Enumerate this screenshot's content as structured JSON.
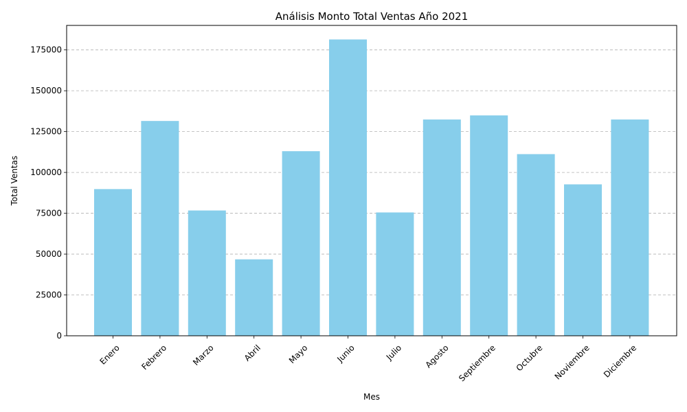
{
  "chart_data": {
    "type": "bar",
    "title": "Análisis Monto Total Ventas Año 2021",
    "xlabel": "Mes",
    "ylabel": "Total Ventas",
    "categories": [
      "Enero",
      "Febrero",
      "Marzo",
      "Abril",
      "Mayo",
      "Junio",
      "Julio",
      "Agosto",
      "Septiembre",
      "Octubre",
      "Noviembre",
      "Diciembre"
    ],
    "values": [
      89800,
      131500,
      76700,
      46800,
      113000,
      181400,
      75500,
      132400,
      134900,
      111200,
      92700,
      132400
    ],
    "ylim": [
      0,
      190000
    ],
    "yticks": [
      0,
      25000,
      50000,
      75000,
      100000,
      125000,
      150000,
      175000
    ],
    "ytick_labels": [
      "0",
      "25000",
      "50000",
      "75000",
      "100000",
      "125000",
      "150000",
      "175000"
    ],
    "bar_color": "#87CEEB",
    "grid": "y-dashed",
    "xtick_rotation": 45
  }
}
